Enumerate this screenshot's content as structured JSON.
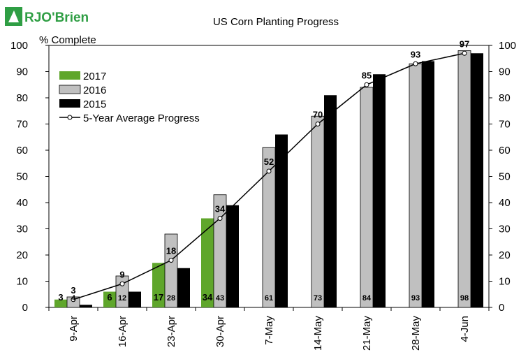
{
  "brand": {
    "logo_text": "RJO'Brien",
    "logo_color": "#2f9e44"
  },
  "chart_data": {
    "type": "bar",
    "title": "US Corn Planting Progress",
    "ylabel": "% Complete",
    "xlabel": "",
    "ylim": [
      0,
      100
    ],
    "yticks": [
      0,
      10,
      20,
      30,
      40,
      50,
      60,
      70,
      80,
      90,
      100
    ],
    "secondary_axis": true,
    "grid": false,
    "legend_position": "top-left",
    "categories": [
      "9-Apr",
      "16-Apr",
      "23-Apr",
      "30-Apr",
      "7-May",
      "14-May",
      "21-May",
      "28-May",
      "4-Jun"
    ],
    "series": [
      {
        "name": "2017",
        "type": "bar",
        "color": "#5fa62b",
        "values": [
          3,
          6,
          17,
          34,
          null,
          null,
          null,
          null,
          null
        ]
      },
      {
        "name": "2016",
        "type": "bar",
        "color": "#c0c0c0",
        "values": [
          4,
          12,
          28,
          43,
          61,
          73,
          84,
          93,
          98
        ]
      },
      {
        "name": "2015",
        "type": "bar",
        "color": "#000000",
        "values": [
          1,
          6,
          15,
          39,
          66,
          81,
          89,
          94,
          97
        ]
      },
      {
        "name": "5-Year Average Progress",
        "type": "line",
        "color": "#000000",
        "values": [
          3,
          9,
          18,
          34,
          52,
          70,
          85,
          93,
          97
        ]
      }
    ]
  }
}
